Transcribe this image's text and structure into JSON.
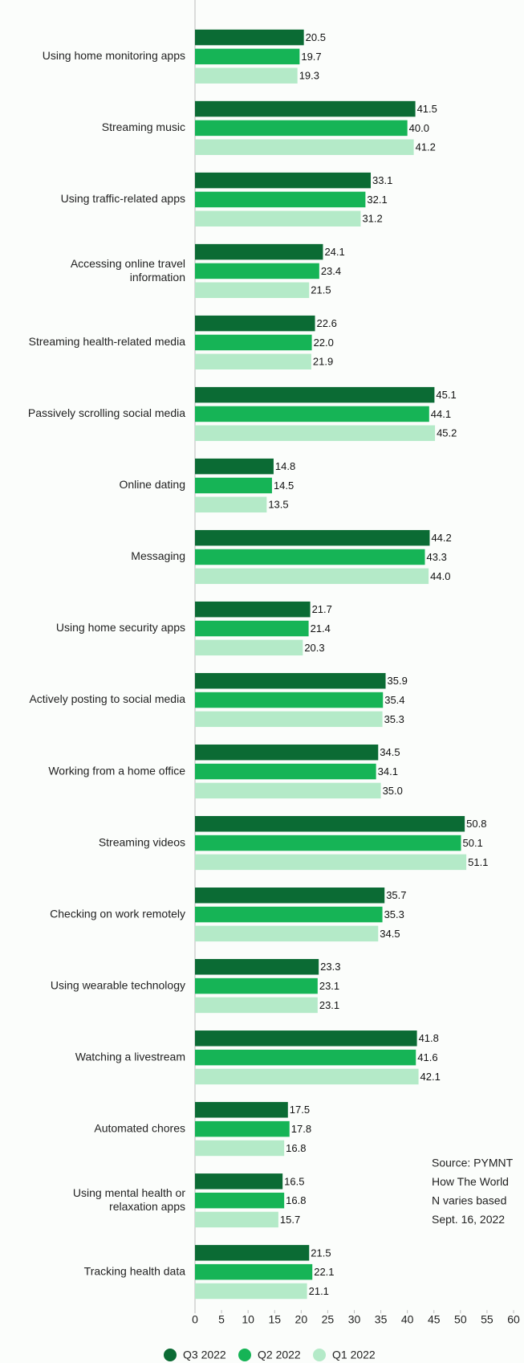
{
  "chart_data": {
    "type": "bar",
    "orientation": "horizontal",
    "categories": [
      "Using home monitoring apps",
      "Streaming music",
      "Using traffic-related apps",
      "Accessing online travel information",
      "Streaming health-related media",
      "Passively scrolling social media",
      "Online dating",
      "Messaging",
      "Using home security apps",
      "Actively posting to social media",
      "Working from a home office",
      "Streaming videos",
      "Checking on work remotely",
      "Using wearable technology",
      "Watching a livestream",
      "Automated chores",
      "Using mental health or relaxation apps",
      "Tracking health data"
    ],
    "series": [
      {
        "name": "Q3 2022",
        "color": "#0b6b34",
        "values": [
          20.5,
          41.5,
          33.1,
          24.1,
          22.6,
          45.1,
          14.8,
          44.2,
          21.7,
          35.9,
          34.5,
          50.8,
          35.7,
          23.3,
          41.8,
          17.5,
          16.5,
          21.5
        ],
        "value_labels": [
          "20.5",
          "41.5",
          "33.1",
          "24.1",
          "22.6",
          "45.1",
          "14.8",
          "44.2",
          "21.7",
          "35.9",
          "34.5",
          "50.8",
          "35.7",
          "23.3",
          "41.8",
          "17.5",
          "16.5",
          "21.5"
        ]
      },
      {
        "name": "Q2 2022",
        "color": "#16b456",
        "values": [
          19.7,
          40.0,
          32.1,
          23.4,
          22.0,
          44.1,
          14.5,
          43.3,
          21.4,
          35.4,
          34.1,
          50.1,
          35.3,
          23.1,
          41.6,
          17.8,
          16.8,
          22.1
        ],
        "value_labels": [
          "19.7",
          "40.0",
          "32.1",
          "23.4",
          "22.0",
          "44.1",
          "14.5",
          "43.3",
          "21.4",
          "35.4",
          "34.1",
          "50.1",
          "35.3",
          "23.1",
          "41.6",
          "17.8",
          "16.8",
          "22.1"
        ]
      },
      {
        "name": "Q1 2022",
        "color": "#b4eac8",
        "values": [
          19.3,
          41.2,
          31.2,
          21.5,
          21.9,
          45.2,
          13.5,
          44.0,
          20.3,
          35.3,
          35.0,
          51.1,
          34.5,
          23.1,
          42.1,
          16.8,
          15.7,
          21.1
        ],
        "value_labels": [
          "19.3",
          "41.2",
          "31.2",
          "21.5",
          "21.9",
          "45.2",
          "13.5",
          "44.0",
          "20.3",
          "35.3",
          "35.0",
          "51.1",
          "34.5",
          "23.1",
          "42.1",
          "16.8",
          "15.7",
          "21.1"
        ]
      }
    ],
    "xlim": [
      0,
      60
    ],
    "xticks": [
      0,
      5,
      10,
      15,
      20,
      25,
      30,
      35,
      40,
      45,
      50,
      55,
      60
    ],
    "legend": "bottom",
    "annotations": [
      "Source: PYMNT",
      "How The World",
      "N varies based",
      "Sept. 16, 2022"
    ]
  }
}
